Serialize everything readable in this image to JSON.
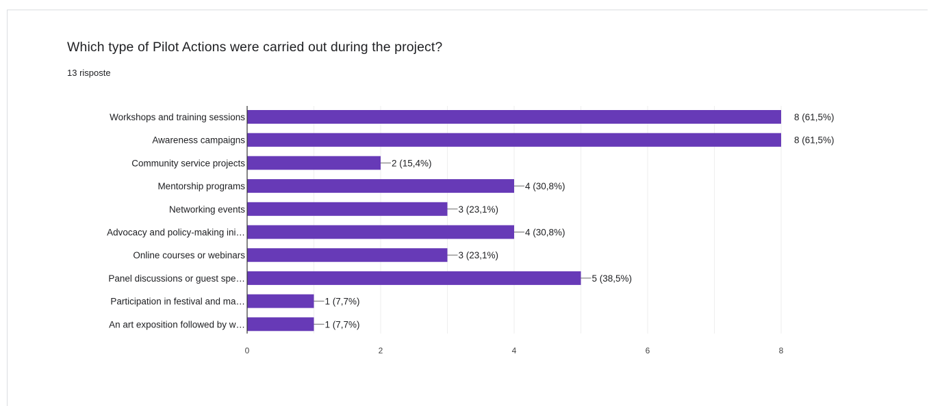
{
  "header": {
    "title": "Which type of Pilot Actions were carried out during the project?",
    "subtitle": "13 risposte"
  },
  "colors": {
    "bar": "#673ab7",
    "grid": "#eeeeee",
    "axis": "#333333",
    "text": "#202124"
  },
  "chart_data": {
    "type": "bar",
    "orientation": "horizontal",
    "title": "Which type of Pilot Actions were carried out during the project?",
    "subtitle": "13 risposte",
    "categories": [
      "Workshops and training sessions",
      "Awareness campaigns",
      "Community service projects",
      "Mentorship programs",
      "Networking events",
      "Advocacy and policy-making ini…",
      "Online courses or webinars",
      "Panel discussions or guest spe…",
      "Participation in festival and ma…",
      "An art exposition followed by w…"
    ],
    "values": [
      8,
      8,
      2,
      4,
      3,
      4,
      3,
      5,
      1,
      1
    ],
    "value_labels": [
      "8 (61,5%)",
      "8 (61,5%)",
      "2 (15,4%)",
      "4 (30,8%)",
      "3 (23,1%)",
      "4 (30,8%)",
      "3 (23,1%)",
      "5 (38,5%)",
      "1 (7,7%)",
      "1 (7,7%)"
    ],
    "xlim": [
      0,
      8
    ],
    "xticks": [
      0,
      2,
      4,
      6,
      8
    ],
    "xlabel": "",
    "ylabel": "",
    "grid": true,
    "legend": "none"
  }
}
